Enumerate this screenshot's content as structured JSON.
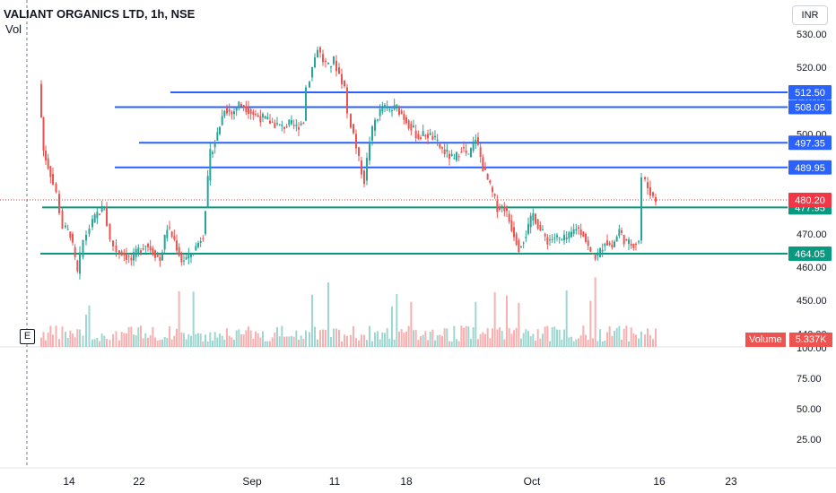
{
  "header": {
    "symbol": "VALIANT ORGANICS LTD, 1h, NSE",
    "volume_label": "Vol",
    "currency": "INR",
    "exchange_badge": "E"
  },
  "volume_badge": {
    "label": "Volume",
    "value": "5.337K",
    "color": "#ef5350"
  },
  "colors": {
    "up": "#26a69a",
    "down": "#ef5350",
    "resistance_line": "#2962ff",
    "support_line": "#089981",
    "current_price": "#f23645"
  },
  "chart_data": {
    "type": "candlestick",
    "price_axis": {
      "min": 445,
      "max": 533,
      "ticks": [
        460,
        470,
        480,
        490,
        500,
        510,
        520,
        530
      ],
      "tick_labels": [
        "460.00",
        "470.00",
        "480.00",
        "490.00",
        "500.00",
        "510.00",
        "520.00",
        "530.00"
      ],
      "extra_labels": [
        {
          "value": 450,
          "label": "450.00"
        },
        {
          "value": 440,
          "label": "440.00"
        }
      ]
    },
    "volume_axis": {
      "ticks": [
        25,
        50,
        75,
        100
      ],
      "tick_labels": [
        "25.00",
        "50.00",
        "75.00",
        "100.00"
      ]
    },
    "x_axis": {
      "labels": [
        "14",
        "22",
        "Sep",
        "11",
        "18",
        "Oct",
        "16",
        "23"
      ]
    },
    "horizontal_lines": [
      {
        "price": 512.5,
        "label": "512.50",
        "kind": "resistance"
      },
      {
        "price": 508.05,
        "label": "508.05",
        "kind": "resistance"
      },
      {
        "price": 497.35,
        "label": "497.35",
        "kind": "resistance"
      },
      {
        "price": 489.95,
        "label": "489.95",
        "kind": "resistance"
      },
      {
        "price": 477.95,
        "label": "477.95",
        "kind": "support"
      },
      {
        "price": 464.05,
        "label": "464.05",
        "kind": "support"
      }
    ],
    "current_price": {
      "value": 480.2,
      "label": "480.20"
    },
    "price_path": [
      [
        45,
        515
      ],
      [
        50,
        495
      ],
      [
        58,
        488
      ],
      [
        65,
        482
      ],
      [
        72,
        472
      ],
      [
        80,
        470
      ],
      [
        88,
        458
      ],
      [
        95,
        468
      ],
      [
        102,
        472
      ],
      [
        110,
        476
      ],
      [
        118,
        478
      ],
      [
        125,
        468
      ],
      [
        132,
        465
      ],
      [
        140,
        464
      ],
      [
        148,
        462
      ],
      [
        156,
        465
      ],
      [
        164,
        467
      ],
      [
        172,
        465
      ],
      [
        180,
        462
      ],
      [
        188,
        472
      ],
      [
        196,
        468
      ],
      [
        204,
        462
      ],
      [
        212,
        463
      ],
      [
        220,
        466
      ],
      [
        228,
        470
      ],
      [
        236,
        494
      ],
      [
        244,
        500
      ],
      [
        252,
        508
      ],
      [
        260,
        506
      ],
      [
        268,
        509
      ],
      [
        276,
        508
      ],
      [
        284,
        506
      ],
      [
        292,
        505
      ],
      [
        300,
        504
      ],
      [
        308,
        503
      ],
      [
        316,
        502
      ],
      [
        324,
        503
      ],
      [
        332,
        502
      ],
      [
        340,
        504
      ],
      [
        344,
        514
      ],
      [
        350,
        520
      ],
      [
        356,
        526
      ],
      [
        362,
        522
      ],
      [
        368,
        520
      ],
      [
        374,
        522
      ],
      [
        380,
        518
      ],
      [
        386,
        514
      ],
      [
        390,
        506
      ],
      [
        396,
        500
      ],
      [
        402,
        492
      ],
      [
        408,
        486
      ],
      [
        414,
        498
      ],
      [
        420,
        504
      ],
      [
        428,
        508
      ],
      [
        436,
        507
      ],
      [
        444,
        508
      ],
      [
        452,
        505
      ],
      [
        460,
        502
      ],
      [
        468,
        499
      ],
      [
        476,
        500
      ],
      [
        484,
        499
      ],
      [
        492,
        496
      ],
      [
        500,
        494
      ],
      [
        508,
        492
      ],
      [
        516,
        496
      ],
      [
        524,
        493
      ],
      [
        532,
        499
      ],
      [
        540,
        490
      ],
      [
        548,
        484
      ],
      [
        556,
        478
      ],
      [
        564,
        478
      ],
      [
        572,
        472
      ],
      [
        580,
        466
      ],
      [
        588,
        470
      ],
      [
        596,
        476
      ],
      [
        604,
        471
      ],
      [
        612,
        468
      ],
      [
        620,
        469
      ],
      [
        628,
        468
      ],
      [
        636,
        469
      ],
      [
        644,
        472
      ],
      [
        652,
        470
      ],
      [
        660,
        464
      ],
      [
        668,
        463
      ],
      [
        676,
        468
      ],
      [
        684,
        466
      ],
      [
        692,
        471
      ],
      [
        700,
        467
      ],
      [
        708,
        467
      ],
      [
        714,
        468
      ],
      [
        718,
        487
      ],
      [
        724,
        484
      ],
      [
        730,
        481
      ],
      [
        734,
        480
      ]
    ]
  }
}
